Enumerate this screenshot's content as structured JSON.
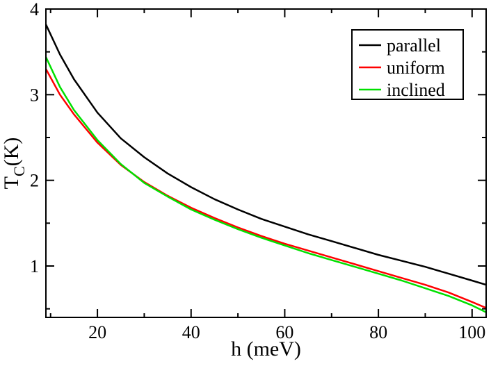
{
  "chart_data": {
    "type": "line",
    "xlabel": "h (meV)",
    "ylabel_main": "T",
    "ylabel_sub": "C",
    "ylabel_unit": "(K)",
    "xlim": [
      9,
      103
    ],
    "ylim": [
      0.4,
      4.0
    ],
    "xticks": [
      20,
      40,
      60,
      80,
      100
    ],
    "xtick_labels": [
      "20",
      "40",
      "60",
      "80",
      "100"
    ],
    "yticks": [
      1,
      2,
      3,
      4
    ],
    "ytick_labels": [
      "1",
      "2",
      "3",
      "4"
    ],
    "grid": false,
    "legend_position": "top-right",
    "series": [
      {
        "name": "parallel",
        "color": "#000000",
        "x": [
          9,
          12,
          15,
          20,
          25,
          30,
          35,
          40,
          45,
          50,
          55,
          60,
          65,
          70,
          75,
          80,
          85,
          90,
          95,
          100,
          103
        ],
        "y": [
          3.82,
          3.47,
          3.18,
          2.79,
          2.49,
          2.27,
          2.08,
          1.92,
          1.78,
          1.66,
          1.55,
          1.46,
          1.37,
          1.29,
          1.21,
          1.13,
          1.06,
          0.99,
          0.91,
          0.83,
          0.78
        ]
      },
      {
        "name": "uniform",
        "color": "#ff0000",
        "x": [
          9,
          12,
          15,
          20,
          25,
          30,
          35,
          40,
          45,
          50,
          55,
          60,
          65,
          70,
          75,
          80,
          85,
          90,
          95,
          100,
          103
        ],
        "y": [
          3.3,
          3.0,
          2.77,
          2.44,
          2.18,
          1.98,
          1.82,
          1.68,
          1.56,
          1.45,
          1.35,
          1.26,
          1.18,
          1.1,
          1.02,
          0.94,
          0.86,
          0.78,
          0.69,
          0.58,
          0.51
        ]
      },
      {
        "name": "inclined",
        "color": "#00e000",
        "x": [
          9,
          12,
          15,
          20,
          25,
          30,
          35,
          40,
          45,
          50,
          55,
          60,
          65,
          70,
          75,
          80,
          85,
          90,
          95,
          100,
          103
        ],
        "y": [
          3.44,
          3.09,
          2.82,
          2.47,
          2.19,
          1.97,
          1.81,
          1.66,
          1.54,
          1.43,
          1.33,
          1.24,
          1.15,
          1.07,
          0.99,
          0.91,
          0.83,
          0.74,
          0.65,
          0.54,
          0.46
        ]
      }
    ]
  }
}
